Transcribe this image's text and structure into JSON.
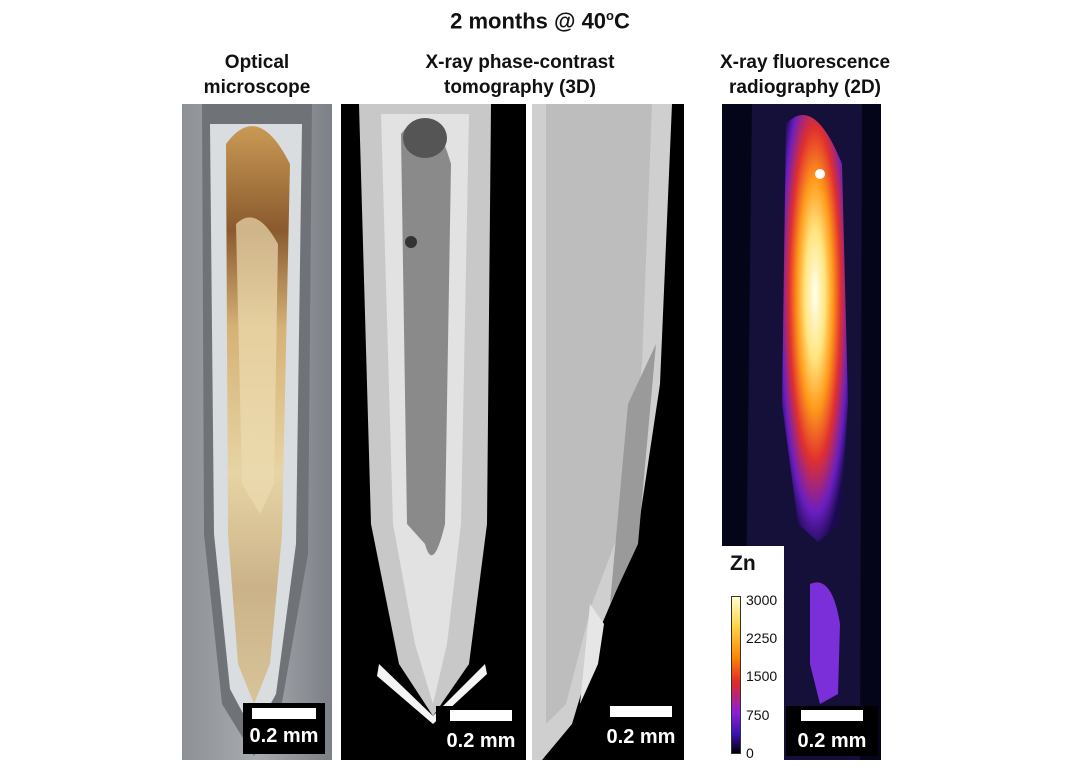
{
  "figure": {
    "title": "2 months @ 40",
    "title_sup": "o",
    "title_suffix": "C"
  },
  "columns": {
    "optical": {
      "line1": "Optical",
      "line2": "microscope"
    },
    "tomography": {
      "line1": "X-ray phase-contrast",
      "line2": "tomography (3D)"
    },
    "fluorescence": {
      "line1": "X-ray fluorescence",
      "line2": "radiography (2D)"
    }
  },
  "scale_bars": {
    "panel1": "0.2 mm",
    "panel2": "0.2 mm",
    "panel3": "0.2 mm",
    "panel4": "0.2 mm"
  },
  "colorbar": {
    "element": "Zn",
    "ticks": [
      "3000",
      "2250",
      "1500",
      "750",
      "0"
    ]
  },
  "colors": {
    "colormap_top": "#ffffd0",
    "colormap_mid": "#ff6a00",
    "colormap_low": "#7a1fd8",
    "colormap_bottom": "#000008"
  }
}
